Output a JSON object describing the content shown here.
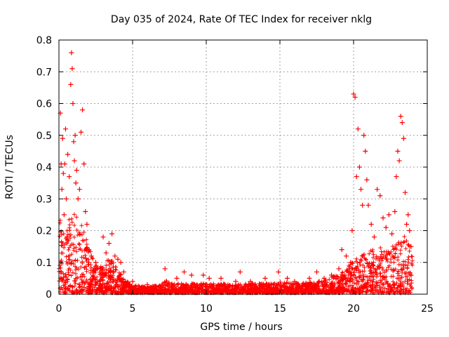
{
  "chart_data": {
    "type": "scatter",
    "title": "Day 035 of 2024, Rate Of TEC Index for receiver nklg",
    "xlabel": "GPS time / hours",
    "ylabel": "ROTI / TECUs",
    "xlim": [
      0,
      25
    ],
    "ylim": [
      0,
      0.8
    ],
    "x_ticks": [
      "0",
      "5",
      "10",
      "15",
      "20",
      "25"
    ],
    "y_ticks": [
      "0",
      "0.1",
      "0.2",
      "0.3",
      "0.4",
      "0.5",
      "0.6",
      "0.7",
      "0.8"
    ],
    "grid": true,
    "marker": "plus",
    "point_color": "#ff0000",
    "series": [
      {
        "x": [
          0.1,
          0.15,
          0.2,
          0.25,
          0.3,
          0.35,
          0.4,
          0.45,
          0.5,
          0.55,
          0.6,
          0.7,
          0.8,
          0.85,
          0.9,
          0.95,
          1.0,
          1.05,
          1.1,
          1.15,
          1.2,
          1.3,
          1.4,
          1.5,
          1.6,
          1.7,
          1.8,
          1.9,
          2.0,
          2.2,
          2.5,
          2.8,
          3.0,
          3.2,
          3.4,
          3.6,
          3.8,
          4.0,
          4.2,
          4.4,
          5.0,
          6.0,
          7.0,
          7.2,
          8.0,
          8.5,
          9.0,
          9.8,
          10.2,
          11.0,
          12.0,
          12.3,
          13.0,
          14.0,
          14.9,
          15.5,
          16.0,
          17.0,
          17.5,
          18.0,
          18.5,
          19.0,
          19.2,
          19.5,
          19.8,
          19.9,
          20.0,
          20.1,
          20.2,
          20.3,
          20.4,
          20.5,
          20.6,
          20.7,
          20.8,
          20.9,
          21.0,
          21.2,
          21.4,
          21.6,
          21.8,
          22.0,
          22.2,
          22.4,
          22.6,
          22.8,
          22.9,
          23.0,
          23.1,
          23.2,
          23.3,
          23.4,
          23.5,
          23.6,
          23.7,
          23.8,
          23.9
        ],
        "y": [
          0.57,
          0.41,
          0.33,
          0.49,
          0.38,
          0.25,
          0.41,
          0.52,
          0.3,
          0.18,
          0.44,
          0.37,
          0.66,
          0.76,
          0.71,
          0.6,
          0.48,
          0.42,
          0.5,
          0.35,
          0.39,
          0.3,
          0.33,
          0.51,
          0.58,
          0.41,
          0.26,
          0.22,
          0.14,
          0.12,
          0.1,
          0.08,
          0.18,
          0.13,
          0.16,
          0.19,
          0.12,
          0.11,
          0.1,
          0.07,
          0.04,
          0.03,
          0.03,
          0.08,
          0.05,
          0.07,
          0.06,
          0.06,
          0.05,
          0.05,
          0.04,
          0.07,
          0.04,
          0.05,
          0.07,
          0.05,
          0.04,
          0.05,
          0.07,
          0.05,
          0.06,
          0.08,
          0.14,
          0.12,
          0.1,
          0.2,
          0.63,
          0.62,
          0.37,
          0.52,
          0.4,
          0.33,
          0.28,
          0.5,
          0.45,
          0.36,
          0.28,
          0.22,
          0.18,
          0.33,
          0.31,
          0.24,
          0.21,
          0.25,
          0.19,
          0.26,
          0.37,
          0.45,
          0.42,
          0.56,
          0.54,
          0.49,
          0.32,
          0.22,
          0.25,
          0.2,
          0.15
        ]
      }
    ]
  }
}
